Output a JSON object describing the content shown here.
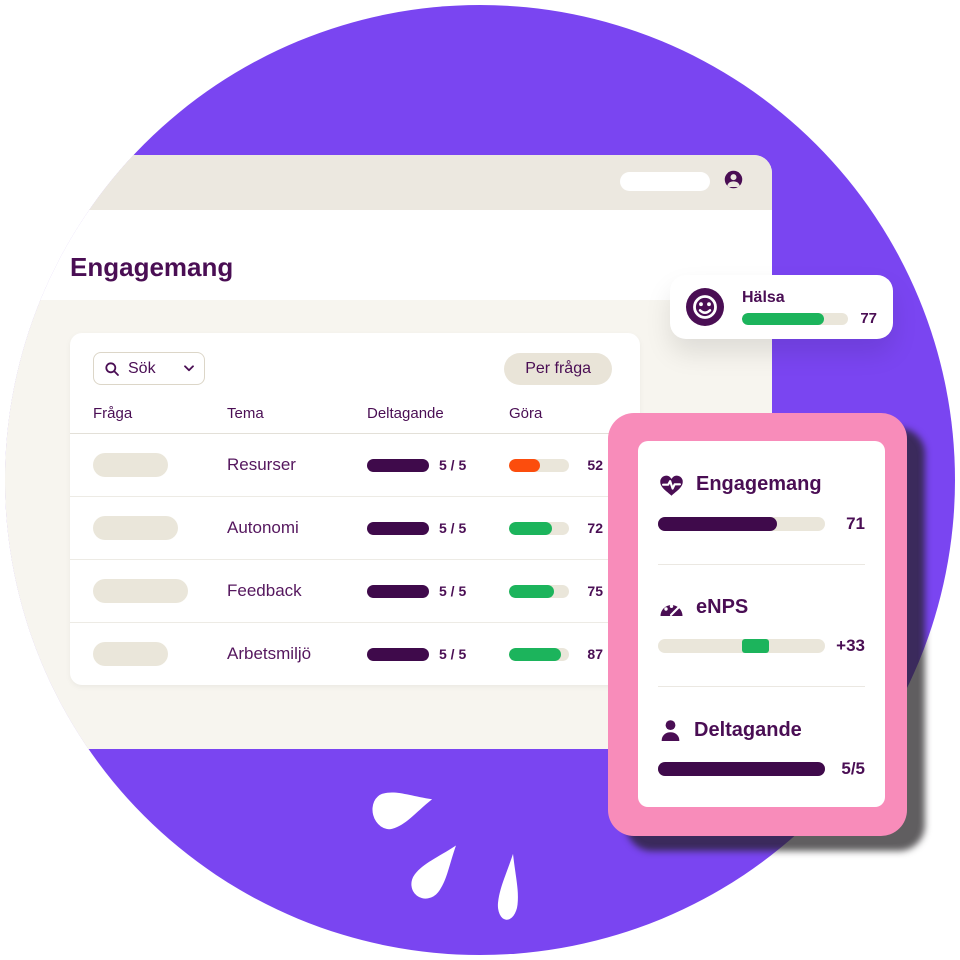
{
  "colors": {
    "purple": "#7A45F1",
    "pink": "#F88CBA",
    "plum_text": "#4A0E54",
    "plum_bar": "#3F0A4B",
    "green": "#1CB45C",
    "orange": "#FC4D0D",
    "beige_bar": "#ECE8E0",
    "track": "#EAE6DA",
    "window_bg": "#F7F5EF"
  },
  "icons": {
    "topbar_avatar": "account-circle-icon",
    "search": "search-icon",
    "search_chevron": "chevron-down-icon",
    "halsa": "smiley-face-icon",
    "engagemang": "heart-pulse-icon",
    "enps": "gauge-icon",
    "deltagande": "person-icon",
    "splash": "splash-drops"
  },
  "window": {
    "heading": "Engagemang",
    "panel": {
      "search_label": "Sök",
      "filter_button": "Per fråga",
      "columns": [
        "Fråga",
        "Tema",
        "Deltagande",
        "Göra"
      ],
      "rows": [
        {
          "placeholder_w": 75,
          "tema": "Resurser",
          "deltagande": "5 / 5",
          "gora": 52,
          "gora_color": "#FC4D0D"
        },
        {
          "placeholder_w": 85,
          "tema": "Autonomi",
          "deltagande": "5 / 5",
          "gora": 72,
          "gora_color": "#1CB45C"
        },
        {
          "placeholder_w": 95,
          "tema": "Feedback",
          "deltagande": "5 / 5",
          "gora": 75,
          "gora_color": "#1CB45C"
        },
        {
          "placeholder_w": 75,
          "tema": "Arbetsmiljö",
          "deltagande": "5 / 5",
          "gora": 87,
          "gora_color": "#1CB45C"
        }
      ]
    }
  },
  "halsa_card": {
    "label": "Hälsa",
    "value": "77",
    "pct": 77
  },
  "summary_card": {
    "metrics": [
      {
        "label": "Engagemang",
        "value": "71",
        "fill_pct": 71
      },
      {
        "label": "eNPS",
        "value": "+33",
        "segment": {
          "left_pct": 50,
          "width_pct": 16.5
        }
      },
      {
        "label": "Deltagande",
        "value": "5/5",
        "fill_pct": 100
      }
    ]
  }
}
